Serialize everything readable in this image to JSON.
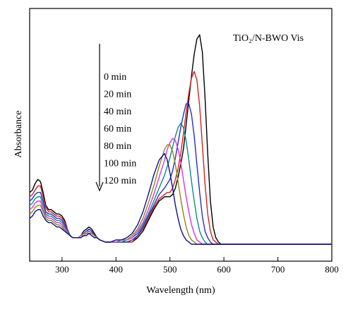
{
  "chart_data": {
    "type": "line",
    "title": "",
    "annotation": "TiO₂/N-BWO Vis",
    "xlabel": "Wavelength (nm)",
    "ylabel": "Absorbance",
    "xlim": [
      240,
      800
    ],
    "ylim": [
      0,
      1.0
    ],
    "xticks": [
      300,
      400,
      500,
      600,
      700,
      800
    ],
    "grid": false,
    "legend_placement": "inside-left (text list with downward arrow)",
    "x": [
      240,
      245,
      250,
      255,
      260,
      265,
      270,
      275,
      280,
      285,
      290,
      295,
      300,
      305,
      310,
      315,
      320,
      325,
      330,
      335,
      340,
      345,
      350,
      355,
      360,
      365,
      370,
      380,
      390,
      400,
      410,
      420,
      430,
      440,
      450,
      460,
      470,
      480,
      490,
      495,
      500,
      505,
      510,
      515,
      520,
      525,
      530,
      535,
      540,
      545,
      550,
      555,
      560,
      565,
      570,
      575,
      580,
      585,
      590,
      595,
      600,
      610,
      620,
      640,
      660,
      700,
      750,
      800
    ],
    "series": [
      {
        "name": "0 min",
        "color": "#000000",
        "values": [
          0.24,
          0.25,
          0.28,
          0.3,
          0.29,
          0.24,
          0.18,
          0.16,
          0.16,
          0.15,
          0.14,
          0.14,
          0.13,
          0.11,
          0.07,
          0.04,
          0.03,
          0.03,
          0.03,
          0.04,
          0.06,
          0.07,
          0.08,
          0.07,
          0.05,
          0.03,
          0.02,
          0.01,
          0.01,
          0.01,
          0.01,
          0.01,
          0.01,
          0.03,
          0.06,
          0.11,
          0.16,
          0.2,
          0.22,
          0.22,
          0.22,
          0.23,
          0.26,
          0.31,
          0.37,
          0.44,
          0.55,
          0.67,
          0.78,
          0.88,
          0.95,
          0.97,
          0.89,
          0.68,
          0.42,
          0.2,
          0.08,
          0.03,
          0.01,
          0.0,
          0.0,
          0.0,
          0.0,
          0.0,
          0.0,
          0.0,
          0.0,
          0.0
        ]
      },
      {
        "name": "20 min",
        "color": "#d62020",
        "values": [
          0.22,
          0.23,
          0.25,
          0.27,
          0.27,
          0.22,
          0.17,
          0.15,
          0.15,
          0.14,
          0.13,
          0.13,
          0.12,
          0.1,
          0.07,
          0.04,
          0.03,
          0.03,
          0.03,
          0.04,
          0.05,
          0.06,
          0.07,
          0.06,
          0.04,
          0.03,
          0.02,
          0.01,
          0.01,
          0.01,
          0.01,
          0.01,
          0.01,
          0.04,
          0.07,
          0.12,
          0.17,
          0.21,
          0.23,
          0.24,
          0.24,
          0.26,
          0.3,
          0.35,
          0.42,
          0.51,
          0.61,
          0.7,
          0.77,
          0.8,
          0.76,
          0.64,
          0.46,
          0.28,
          0.14,
          0.06,
          0.02,
          0.01,
          0.0,
          0.0,
          0.0,
          0.0,
          0.0,
          0.0,
          0.0,
          0.0,
          0.0,
          0.0
        ]
      },
      {
        "name": "40 min",
        "color": "#2030d0",
        "values": [
          0.2,
          0.21,
          0.23,
          0.24,
          0.24,
          0.2,
          0.15,
          0.14,
          0.14,
          0.13,
          0.12,
          0.12,
          0.11,
          0.09,
          0.06,
          0.04,
          0.03,
          0.03,
          0.03,
          0.04,
          0.05,
          0.06,
          0.07,
          0.06,
          0.04,
          0.03,
          0.02,
          0.01,
          0.01,
          0.01,
          0.01,
          0.01,
          0.02,
          0.04,
          0.08,
          0.13,
          0.18,
          0.23,
          0.26,
          0.28,
          0.3,
          0.34,
          0.4,
          0.47,
          0.54,
          0.6,
          0.65,
          0.65,
          0.6,
          0.5,
          0.37,
          0.24,
          0.13,
          0.06,
          0.03,
          0.01,
          0.0,
          0.0,
          0.0,
          0.0,
          0.0,
          0.0,
          0.0,
          0.0,
          0.0,
          0.0,
          0.0,
          0.0
        ]
      },
      {
        "name": "60 min",
        "color": "#108a8a",
        "values": [
          0.18,
          0.19,
          0.21,
          0.22,
          0.22,
          0.18,
          0.14,
          0.13,
          0.13,
          0.12,
          0.11,
          0.11,
          0.1,
          0.08,
          0.06,
          0.04,
          0.03,
          0.03,
          0.03,
          0.04,
          0.05,
          0.06,
          0.06,
          0.05,
          0.04,
          0.03,
          0.02,
          0.01,
          0.01,
          0.01,
          0.01,
          0.02,
          0.03,
          0.05,
          0.09,
          0.14,
          0.2,
          0.26,
          0.32,
          0.36,
          0.4,
          0.45,
          0.5,
          0.54,
          0.56,
          0.54,
          0.48,
          0.39,
          0.29,
          0.2,
          0.12,
          0.06,
          0.03,
          0.01,
          0.0,
          0.0,
          0.0,
          0.0,
          0.0,
          0.0,
          0.0,
          0.0,
          0.0,
          0.0,
          0.0,
          0.0,
          0.0,
          0.0
        ]
      },
      {
        "name": "80 min",
        "color": "#e030e0",
        "values": [
          0.16,
          0.17,
          0.19,
          0.2,
          0.2,
          0.16,
          0.13,
          0.12,
          0.12,
          0.11,
          0.1,
          0.1,
          0.09,
          0.07,
          0.05,
          0.04,
          0.03,
          0.03,
          0.03,
          0.04,
          0.05,
          0.05,
          0.06,
          0.05,
          0.04,
          0.03,
          0.02,
          0.01,
          0.01,
          0.01,
          0.02,
          0.02,
          0.03,
          0.06,
          0.1,
          0.16,
          0.23,
          0.31,
          0.39,
          0.44,
          0.47,
          0.49,
          0.48,
          0.44,
          0.38,
          0.3,
          0.22,
          0.15,
          0.09,
          0.05,
          0.02,
          0.01,
          0.0,
          0.0,
          0.0,
          0.0,
          0.0,
          0.0,
          0.0,
          0.0,
          0.0,
          0.0,
          0.0,
          0.0,
          0.0,
          0.0,
          0.0,
          0.0
        ]
      },
      {
        "name": "100 min",
        "color": "#8a8a10",
        "values": [
          0.14,
          0.15,
          0.17,
          0.18,
          0.18,
          0.15,
          0.12,
          0.11,
          0.11,
          0.1,
          0.09,
          0.09,
          0.08,
          0.06,
          0.05,
          0.04,
          0.03,
          0.03,
          0.03,
          0.04,
          0.04,
          0.05,
          0.05,
          0.05,
          0.04,
          0.03,
          0.02,
          0.01,
          0.01,
          0.02,
          0.02,
          0.02,
          0.04,
          0.07,
          0.12,
          0.19,
          0.27,
          0.36,
          0.44,
          0.46,
          0.46,
          0.43,
          0.37,
          0.29,
          0.21,
          0.14,
          0.08,
          0.04,
          0.02,
          0.01,
          0.0,
          0.0,
          0.0,
          0.0,
          0.0,
          0.0,
          0.0,
          0.0,
          0.0,
          0.0,
          0.0,
          0.0,
          0.0,
          0.0,
          0.0,
          0.0,
          0.0,
          0.0
        ]
      },
      {
        "name": "120 min",
        "color": "#10108a",
        "values": [
          0.12,
          0.13,
          0.15,
          0.16,
          0.16,
          0.13,
          0.11,
          0.1,
          0.1,
          0.09,
          0.08,
          0.08,
          0.07,
          0.06,
          0.05,
          0.04,
          0.03,
          0.03,
          0.03,
          0.03,
          0.04,
          0.04,
          0.05,
          0.04,
          0.03,
          0.03,
          0.02,
          0.01,
          0.01,
          0.02,
          0.02,
          0.03,
          0.05,
          0.09,
          0.15,
          0.23,
          0.32,
          0.39,
          0.42,
          0.39,
          0.33,
          0.26,
          0.18,
          0.12,
          0.07,
          0.04,
          0.02,
          0.01,
          0.0,
          0.0,
          0.0,
          0.0,
          0.0,
          0.0,
          0.0,
          0.0,
          0.0,
          0.0,
          0.0,
          0.0,
          0.0,
          0.0,
          0.0,
          0.0,
          0.0,
          0.0,
          0.0,
          0.0
        ]
      }
    ]
  }
}
